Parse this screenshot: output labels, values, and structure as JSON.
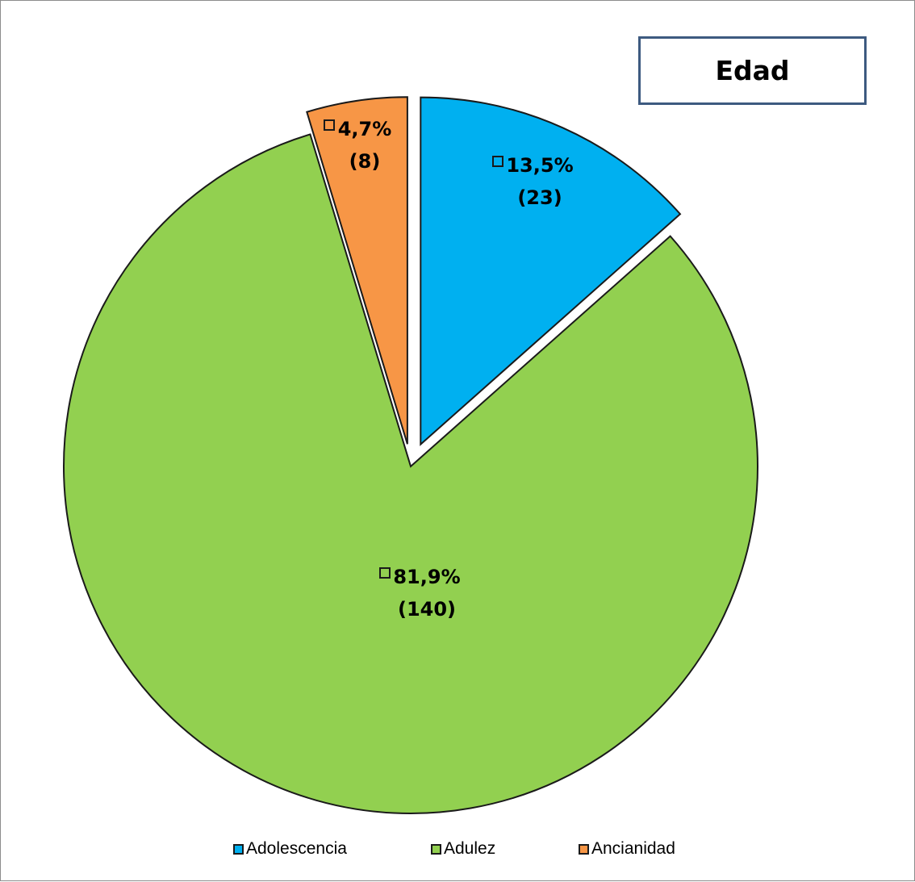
{
  "chart_data": {
    "type": "pie",
    "title": "Edad",
    "slices": [
      {
        "name": "Adolescencia",
        "value": 23,
        "percent_label": "13,5%",
        "count_label": "(23)",
        "color": "#00b0f0"
      },
      {
        "name": "Adulez",
        "value": 140,
        "percent_label": "81,9%",
        "count_label": "(140)",
        "color": "#92d050"
      },
      {
        "name": "Ancianidad",
        "value": 8,
        "percent_label": "4,7%",
        "count_label": "(8)",
        "color": "#f79646"
      }
    ],
    "legend_position": "bottom",
    "exploded": true
  },
  "colors": {
    "slice_border": "#1a1a1a",
    "title_border": "#3d5a80"
  }
}
